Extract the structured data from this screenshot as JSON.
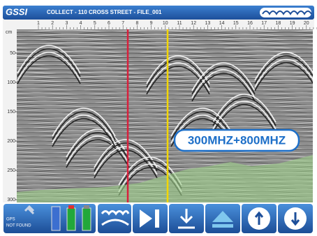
{
  "header": {
    "logo": "GSSI",
    "title": "COLLECT - 110 CROSS STREET - FILE_001"
  },
  "ruler": {
    "labels": [
      "1",
      "2",
      "3",
      "4",
      "5",
      "6",
      "7",
      "8",
      "9",
      "10",
      "11",
      "12",
      "13",
      "14",
      "15",
      "16",
      "17",
      "18",
      "19",
      "20"
    ]
  },
  "depth": {
    "unit": "cm",
    "ticks": [
      50,
      100,
      150,
      200,
      250,
      300
    ]
  },
  "overlay": {
    "label": "300MHZ+800MHZ"
  },
  "toolbar": {
    "gps": "GPS",
    "status": "NOT FOUND"
  }
}
